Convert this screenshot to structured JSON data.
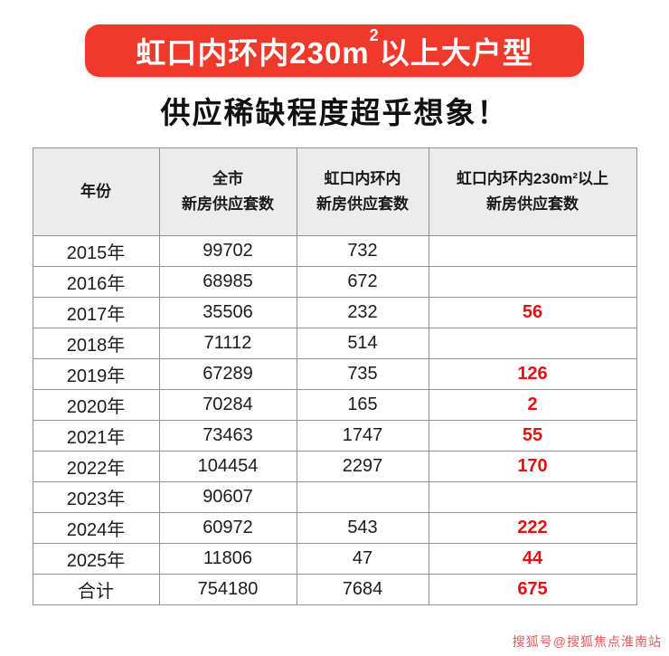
{
  "banner": {
    "part1": "虹口内环内230m",
    "sup": "2",
    "part2": "以上大户型"
  },
  "subtitle": "供应稀缺程度超乎想象！",
  "table": {
    "headers": [
      "年份",
      "全市\n新房供应套数",
      "虹口内环内\n新房供应套数",
      "虹口内环内230m²以上\n新房供应套数"
    ]
  },
  "chart_data": {
    "type": "table",
    "title": "虹口内环内230m²以上大户型 供应稀缺程度超乎想象！",
    "columns": [
      "年份",
      "全市新房供应套数",
      "虹口内环内新房供应套数",
      "虹口内环内230m²以上新房供应套数"
    ],
    "rows": [
      [
        "2015年",
        99702,
        732,
        null
      ],
      [
        "2016年",
        68985,
        672,
        null
      ],
      [
        "2017年",
        35506,
        232,
        56
      ],
      [
        "2018年",
        71112,
        514,
        null
      ],
      [
        "2019年",
        67289,
        735,
        126
      ],
      [
        "2020年",
        70284,
        165,
        2
      ],
      [
        "2021年",
        73463,
        1747,
        55
      ],
      [
        "2022年",
        104454,
        2297,
        170
      ],
      [
        "2023年",
        90607,
        null,
        null
      ],
      [
        "2024年",
        60972,
        543,
        222
      ],
      [
        "2025年",
        11806,
        47,
        44
      ],
      [
        "合计",
        754180,
        7684,
        675
      ]
    ],
    "highlight_color": "#e60f12",
    "banner_color": "#ee392b"
  },
  "watermark": "搜狐号@搜狐焦点淮南站"
}
